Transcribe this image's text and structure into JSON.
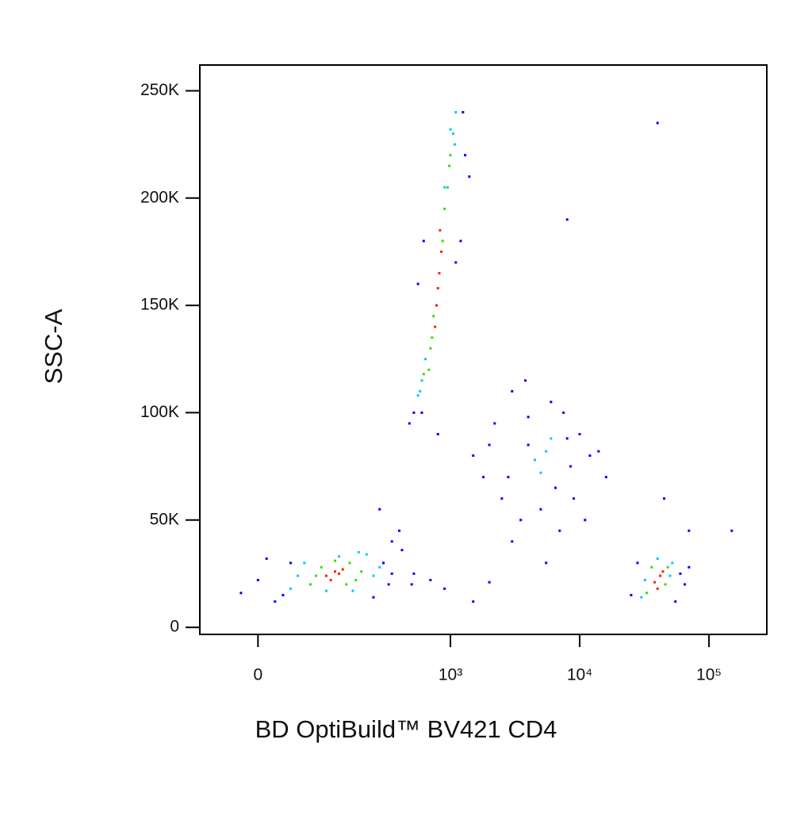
{
  "chart_data": {
    "type": "scatter",
    "xlabel": "BD OptiBuild™ BV421 CD4",
    "ylabel": "SSC-A",
    "xscale": "biexponential",
    "xlim": [
      -80,
      280000
    ],
    "ylim": [
      -3300,
      262000
    ],
    "xticks": [
      0,
      {
        "value": 1000,
        "label": "10³"
      },
      {
        "value": 10000,
        "label": "10⁴"
      },
      {
        "value": 100000,
        "label": "10⁵"
      }
    ],
    "yticks": [
      0,
      {
        "value": 50000,
        "label": "50K"
      },
      {
        "value": 100000,
        "label": "100K"
      },
      {
        "value": 150000,
        "label": "150K"
      },
      {
        "value": 200000,
        "label": "200K"
      },
      {
        "value": 250000,
        "label": "250K"
      }
    ],
    "series": [
      {
        "color": "#0000ff",
        "x": [
          -20,
          0,
          20,
          40,
          300,
          350,
          400,
          250,
          330,
          280,
          420,
          10,
          30,
          350,
          500,
          520,
          700,
          900,
          1500,
          2000,
          800,
          600,
          1200,
          1100,
          480,
          520,
          1300,
          1400,
          1250,
          560,
          620,
          1500,
          1800,
          2200,
          2500,
          3000,
          3500,
          4000,
          6500,
          7500,
          8500,
          10000,
          12000,
          14000,
          3000,
          5000,
          7000,
          9000,
          2000,
          4000,
          6000,
          2800,
          8000,
          5500,
          3800,
          11000,
          16000,
          25000,
          28000,
          60000,
          65000,
          55000,
          70000,
          45000,
          150000,
          70000,
          40000,
          8000
        ],
        "values": [
          16000,
          22000,
          12000,
          30000,
          30000,
          40000,
          45000,
          14000,
          20000,
          55000,
          36000,
          32000,
          15000,
          25000,
          20000,
          25000,
          22000,
          18000,
          12000,
          21000,
          90000,
          100000,
          180000,
          170000,
          95000,
          100000,
          220000,
          210000,
          240000,
          160000,
          180000,
          80000,
          70000,
          95000,
          60000,
          110000,
          50000,
          85000,
          65000,
          100000,
          75000,
          90000,
          80000,
          82000,
          40000,
          55000,
          45000,
          60000,
          85000,
          98000,
          105000,
          70000,
          88000,
          30000,
          115000,
          50000,
          70000,
          15000,
          30000,
          25000,
          20000,
          12000,
          28000,
          60000,
          45000,
          45000,
          235000,
          190000
        ]
      },
      {
        "color": "#00c8ff",
        "x": [
          40,
          60,
          220,
          250,
          100,
          170,
          50,
          280,
          130,
          190,
          560,
          600,
          1050,
          1100,
          640,
          900,
          1080,
          780,
          580,
          1000,
          4500,
          5500,
          5000,
          6000,
          30000,
          52000,
          32000,
          50000,
          40000
        ],
        "values": [
          18000,
          30000,
          34000,
          24000,
          17000,
          17000,
          24000,
          28000,
          33000,
          35000,
          108000,
          115000,
          230000,
          240000,
          125000,
          205000,
          225000,
          150000,
          110000,
          232000,
          78000,
          82000,
          72000,
          88000,
          14000,
          30000,
          22000,
          24000,
          32000
        ]
      },
      {
        "color": "#30e000",
        "x": [
          70,
          90,
          160,
          180,
          80,
          150,
          200,
          120,
          700,
          740,
          900,
          950,
          680,
          870,
          980,
          720,
          1000,
          620,
          33000,
          48000,
          36000,
          46000
        ],
        "values": [
          20000,
          28000,
          30000,
          22000,
          24000,
          20000,
          26000,
          31000,
          130000,
          145000,
          195000,
          205000,
          120000,
          180000,
          215000,
          135000,
          220000,
          118000,
          16000,
          28000,
          28000,
          20000
        ]
      },
      {
        "color": "#ff2000",
        "x": [
          100,
          120,
          140,
          110,
          130,
          780,
          820,
          760,
          850,
          800,
          830,
          38000,
          42000,
          40000,
          44000
        ],
        "values": [
          24000,
          26000,
          27000,
          22000,
          25000,
          150000,
          165000,
          140000,
          175000,
          158000,
          185000,
          21000,
          24000,
          18000,
          26000
        ]
      }
    ]
  }
}
